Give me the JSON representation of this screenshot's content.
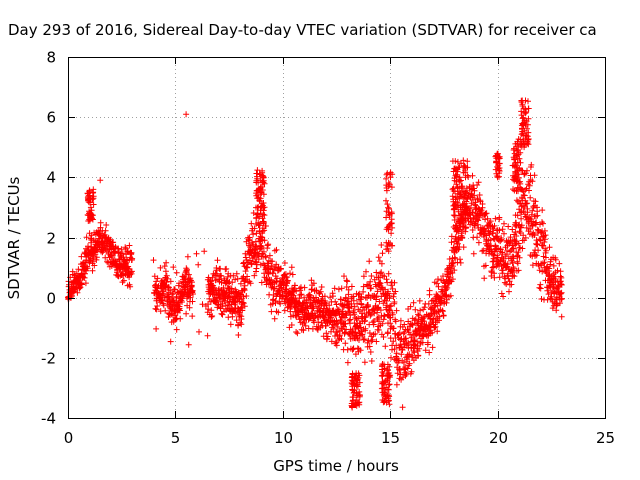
{
  "chart_data": {
    "type": "scatter",
    "title": "Day 293 of 2016, Sidereal Day-to-day VTEC variation (SDTVAR) for receiver ca",
    "xlabel": "GPS time / hours",
    "ylabel": "SDTVAR / TECUs",
    "xlim": [
      0,
      25
    ],
    "ylim": [
      -4,
      8
    ],
    "xticks": [
      0,
      5,
      10,
      15,
      20,
      25
    ],
    "yticks": [
      -4,
      -2,
      0,
      2,
      4,
      6,
      8
    ],
    "xtick_labels": [
      "0",
      "5",
      "10",
      "15",
      "20",
      "25"
    ],
    "ytick_labels": [
      "-4",
      "-2",
      "0",
      "2",
      "4",
      "6",
      "8"
    ],
    "grid": true,
    "marker": "+",
    "series_color": "#ff0000",
    "outliers": [
      [
        5.5,
        6.1
      ],
      [
        1.5,
        3.9
      ]
    ],
    "trend": {
      "x": [
        0,
        0.5,
        1.0,
        1.5,
        2.0,
        2.5,
        3.0,
        4.0,
        4.5,
        5.0,
        5.5,
        6.0,
        6.5,
        7.0,
        7.5,
        8.0,
        8.5,
        9.0,
        9.5,
        10.0,
        10.5,
        11.0,
        11.5,
        12.0,
        12.5,
        13.0,
        13.5,
        14.0,
        14.5,
        15.0,
        15.5,
        16.0,
        16.5,
        17.0,
        17.5,
        18.0,
        18.5,
        19.0,
        19.5,
        20.0,
        20.5,
        21.0,
        21.5,
        22.0,
        22.5,
        23.0
      ],
      "y": [
        0.2,
        0.6,
        1.5,
        2.0,
        1.5,
        1.0,
        1.0,
        0.0,
        0.3,
        -0.5,
        0.5,
        0.0,
        0.0,
        0.3,
        0.0,
        -0.3,
        1.5,
        2.0,
        0.5,
        0.3,
        0.0,
        -0.5,
        -0.3,
        -0.5,
        -0.8,
        -0.5,
        -1.0,
        -0.5,
        0.0,
        -0.5,
        -2.0,
        -1.5,
        -1.0,
        -0.5,
        0.0,
        1.5,
        3.0,
        3.0,
        2.0,
        1.5,
        1.0,
        2.5,
        3.0,
        1.5,
        0.5,
        0.3
      ]
    },
    "spread": [
      0.6,
      0.5,
      0.9,
      0.7,
      0.8,
      0.8,
      0.8,
      0.7,
      0.8,
      0.8,
      0.8,
      0.6,
      0.8,
      1.0,
      1.0,
      1.0,
      1.3,
      1.5,
      1.2,
      1.0,
      1.0,
      0.8,
      1.0,
      1.0,
      1.2,
      1.4,
      1.5,
      1.8,
      1.8,
      2.0,
      1.6,
      1.2,
      1.0,
      1.0,
      1.0,
      1.2,
      1.2,
      1.3,
      1.3,
      1.3,
      1.5,
      1.8,
      2.0,
      1.5,
      1.2,
      1.0
    ],
    "bursts": [
      {
        "x0": 8.75,
        "x1": 9.15,
        "y0": 2.5,
        "y1": 4.3
      },
      {
        "x0": 14.8,
        "x1": 15.1,
        "y0": 1.5,
        "y1": 4.3
      },
      {
        "x0": 17.9,
        "x1": 18.6,
        "y0": 2.2,
        "y1": 4.6
      },
      {
        "x0": 19.9,
        "x1": 20.1,
        "y0": 4.0,
        "y1": 4.8
      },
      {
        "x0": 20.7,
        "x1": 21.1,
        "y0": 3.5,
        "y1": 5.3
      },
      {
        "x0": 21.1,
        "x1": 21.45,
        "y0": 5.0,
        "y1": 6.6
      },
      {
        "x0": 13.2,
        "x1": 13.6,
        "y0": -3.7,
        "y1": -2.5
      },
      {
        "x0": 14.6,
        "x1": 15.0,
        "y0": -3.6,
        "y1": -2.2
      },
      {
        "x0": 0.9,
        "x1": 1.2,
        "y0": 2.5,
        "y1": 3.6
      }
    ],
    "gaps": [
      [
        3.0,
        4.0
      ],
      [
        5.8,
        6.5
      ]
    ]
  }
}
